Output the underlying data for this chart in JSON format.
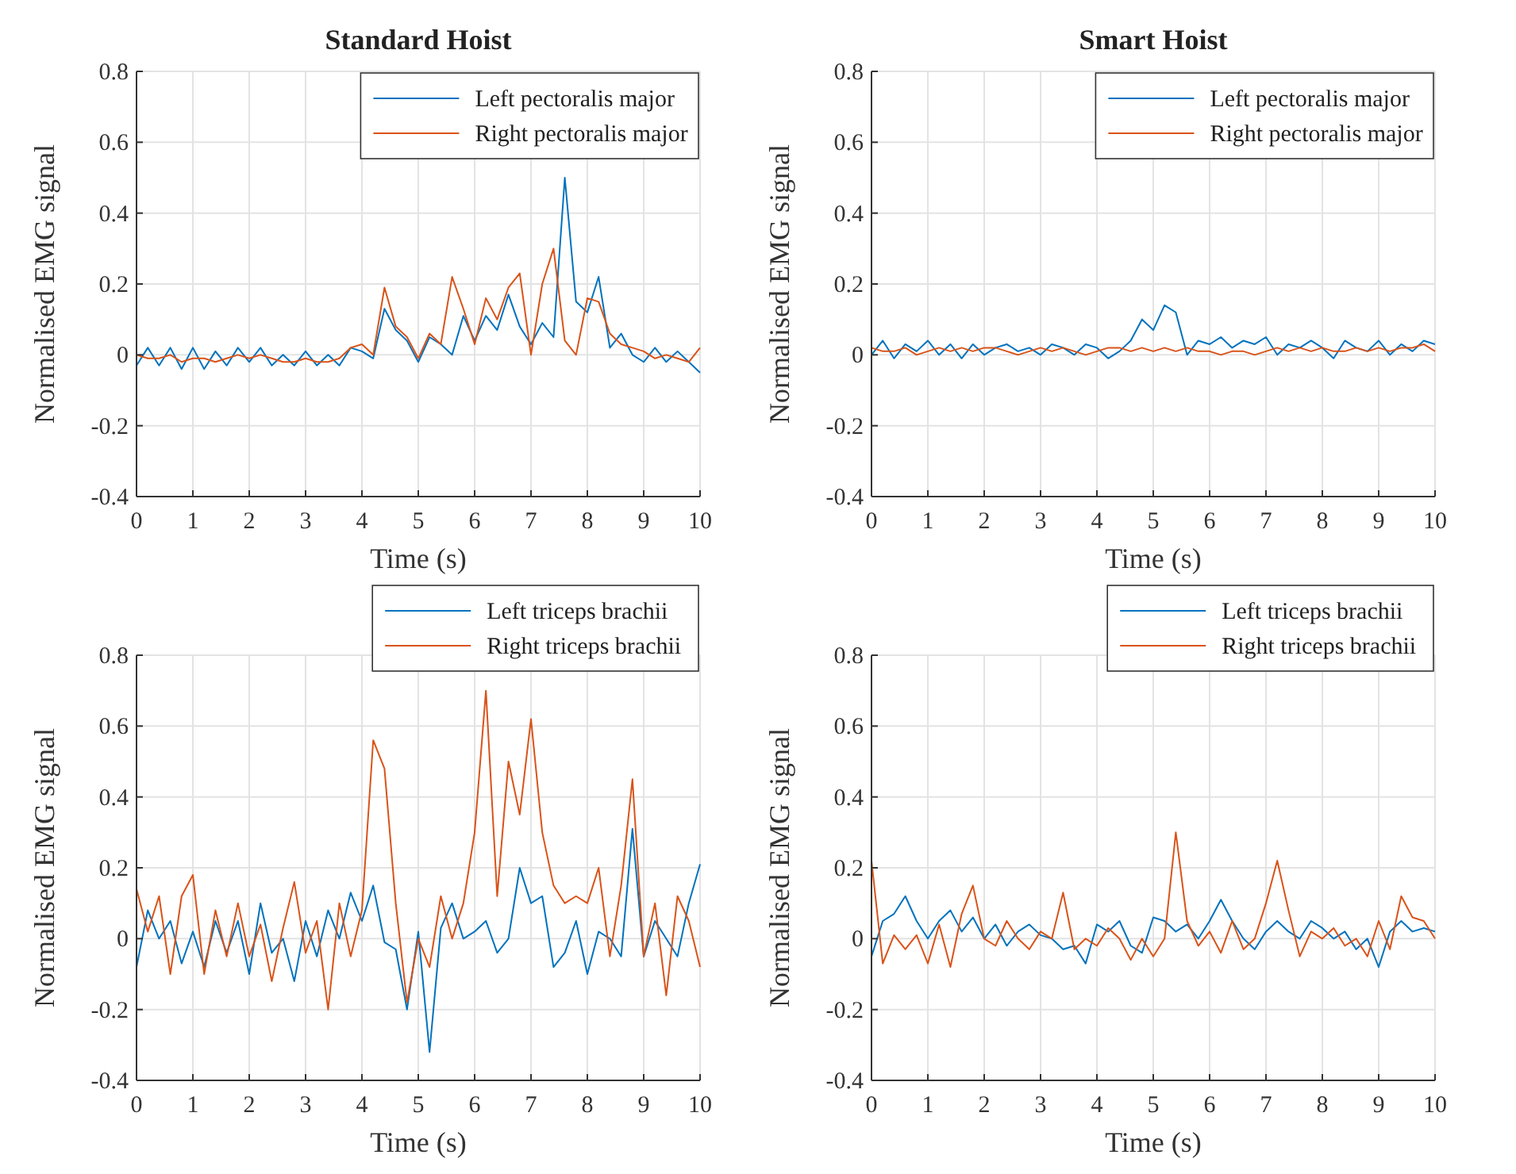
{
  "chart_data": [
    {
      "type": "line",
      "title": "Standard Hoist",
      "xlabel": "Time (s)",
      "ylabel": "Normalised EMG signal",
      "xlim": [
        0,
        10
      ],
      "ylim": [
        -0.4,
        0.8
      ],
      "xticks": [
        0,
        1,
        2,
        3,
        4,
        5,
        6,
        7,
        8,
        9,
        10
      ],
      "yticks": [
        -0.4,
        -0.2,
        0,
        0.2,
        0.4,
        0.6,
        0.8
      ],
      "grid": true,
      "legend": "top right",
      "line_style": "solid",
      "marker": "none",
      "x": [
        0,
        0.2,
        0.4,
        0.6,
        0.8,
        1,
        1.2,
        1.4,
        1.6,
        1.8,
        2,
        2.2,
        2.4,
        2.6,
        2.8,
        3,
        3.2,
        3.4,
        3.6,
        3.8,
        4,
        4.2,
        4.4,
        4.6,
        4.8,
        5,
        5.2,
        5.4,
        5.6,
        5.8,
        6,
        6.2,
        6.4,
        6.6,
        6.8,
        7,
        7.2,
        7.4,
        7.6,
        7.8,
        8,
        8.2,
        8.4,
        8.6,
        8.8,
        9,
        9.2,
        9.4,
        9.6,
        9.8,
        10
      ],
      "series": [
        {
          "name": "Left pectoralis major",
          "color": "#0072bd",
          "values": [
            -0.03,
            0.02,
            -0.03,
            0.02,
            -0.04,
            0.02,
            -0.04,
            0.01,
            -0.03,
            0.02,
            -0.02,
            0.02,
            -0.03,
            0,
            -0.03,
            0.01,
            -0.03,
            0,
            -0.03,
            0.02,
            0.01,
            -0.01,
            0.13,
            0.07,
            0.04,
            -0.02,
            0.05,
            0.03,
            0,
            0.11,
            0.04,
            0.11,
            0.07,
            0.17,
            0.08,
            0.03,
            0.09,
            0.05,
            0.5,
            0.15,
            0.12,
            0.22,
            0.02,
            0.06,
            0,
            -0.02,
            0.02,
            -0.02,
            0.01,
            -0.02,
            -0.05
          ]
        },
        {
          "name": "Right pectoralis major",
          "color": "#d95319",
          "values": [
            0,
            -0.01,
            -0.01,
            0,
            -0.02,
            -0.01,
            -0.01,
            -0.02,
            -0.01,
            0,
            -0.01,
            0,
            -0.01,
            -0.02,
            -0.02,
            -0.01,
            -0.02,
            -0.02,
            -0.01,
            0.02,
            0.03,
            0,
            0.19,
            0.08,
            0.05,
            -0.01,
            0.06,
            0.03,
            0.22,
            0.13,
            0.03,
            0.16,
            0.1,
            0.19,
            0.23,
            0,
            0.2,
            0.3,
            0.04,
            0,
            0.16,
            0.15,
            0.06,
            0.03,
            0.02,
            0.01,
            -0.01,
            0,
            -0.01,
            -0.02,
            0.02
          ]
        }
      ]
    },
    {
      "type": "line",
      "title": "Smart Hoist",
      "xlabel": "Time (s)",
      "ylabel": "Normalised EMG signal",
      "xlim": [
        0,
        10
      ],
      "ylim": [
        -0.4,
        0.8
      ],
      "xticks": [
        0,
        1,
        2,
        3,
        4,
        5,
        6,
        7,
        8,
        9,
        10
      ],
      "yticks": [
        -0.4,
        -0.2,
        0,
        0.2,
        0.4,
        0.6,
        0.8
      ],
      "grid": true,
      "legend": "top right",
      "line_style": "solid",
      "marker": "none",
      "x": [
        0,
        0.2,
        0.4,
        0.6,
        0.8,
        1,
        1.2,
        1.4,
        1.6,
        1.8,
        2,
        2.2,
        2.4,
        2.6,
        2.8,
        3,
        3.2,
        3.4,
        3.6,
        3.8,
        4,
        4.2,
        4.4,
        4.6,
        4.8,
        5,
        5.2,
        5.4,
        5.6,
        5.8,
        6,
        6.2,
        6.4,
        6.6,
        6.8,
        7,
        7.2,
        7.4,
        7.6,
        7.8,
        8,
        8.2,
        8.4,
        8.6,
        8.8,
        9,
        9.2,
        9.4,
        9.6,
        9.8,
        10
      ],
      "series": [
        {
          "name": "Left pectoralis major",
          "color": "#0072bd",
          "values": [
            0,
            0.04,
            -0.01,
            0.03,
            0.01,
            0.04,
            0,
            0.03,
            -0.01,
            0.03,
            0,
            0.02,
            0.03,
            0.01,
            0.02,
            0,
            0.03,
            0.02,
            0,
            0.03,
            0.02,
            -0.01,
            0.01,
            0.04,
            0.1,
            0.07,
            0.14,
            0.12,
            0,
            0.04,
            0.03,
            0.05,
            0.02,
            0.04,
            0.03,
            0.05,
            0,
            0.03,
            0.02,
            0.04,
            0.02,
            -0.01,
            0.04,
            0.02,
            0.01,
            0.04,
            0,
            0.03,
            0.01,
            0.04,
            0.03
          ]
        },
        {
          "name": "Right pectoralis major",
          "color": "#d95319",
          "values": [
            0.02,
            0.01,
            0.01,
            0.02,
            0,
            0.01,
            0.02,
            0.01,
            0.02,
            0.01,
            0.02,
            0.02,
            0.01,
            0,
            0.01,
            0.02,
            0.01,
            0.02,
            0.01,
            0,
            0.01,
            0.02,
            0.02,
            0.01,
            0.02,
            0.01,
            0.02,
            0.01,
            0.02,
            0.01,
            0.01,
            0,
            0.01,
            0.01,
            0,
            0.01,
            0.02,
            0.01,
            0.02,
            0.01,
            0.02,
            0.01,
            0.01,
            0.02,
            0.01,
            0.02,
            0.01,
            0.02,
            0.02,
            0.03,
            0.01
          ]
        }
      ]
    },
    {
      "type": "line",
      "xlabel": "Time (s)",
      "ylabel": "Normalised EMG signal",
      "xlim": [
        0,
        10
      ],
      "ylim": [
        -0.4,
        0.8
      ],
      "xticks": [
        0,
        1,
        2,
        3,
        4,
        5,
        6,
        7,
        8,
        9,
        10
      ],
      "yticks": [
        -0.4,
        -0.2,
        0,
        0.2,
        0.4,
        0.6,
        0.8
      ],
      "grid": true,
      "legend": "top right",
      "line_style": "solid",
      "marker": "none",
      "x": [
        0,
        0.2,
        0.4,
        0.6,
        0.8,
        1,
        1.2,
        1.4,
        1.6,
        1.8,
        2,
        2.2,
        2.4,
        2.6,
        2.8,
        3,
        3.2,
        3.4,
        3.6,
        3.8,
        4,
        4.2,
        4.4,
        4.6,
        4.8,
        5,
        5.2,
        5.4,
        5.6,
        5.8,
        6,
        6.2,
        6.4,
        6.6,
        6.8,
        7,
        7.2,
        7.4,
        7.6,
        7.8,
        8,
        8.2,
        8.4,
        8.6,
        8.8,
        9,
        9.2,
        9.4,
        9.6,
        9.8,
        10
      ],
      "series": [
        {
          "name": "Left triceps brachii",
          "color": "#0072bd",
          "values": [
            -0.08,
            0.08,
            0,
            0.05,
            -0.07,
            0.02,
            -0.08,
            0.05,
            -0.04,
            0.05,
            -0.1,
            0.1,
            -0.04,
            0,
            -0.12,
            0.05,
            -0.05,
            0.08,
            0,
            0.13,
            0.05,
            0.15,
            -0.01,
            -0.03,
            -0.2,
            0.02,
            -0.32,
            0.03,
            0.1,
            0,
            0.02,
            0.05,
            -0.04,
            0,
            0.2,
            0.1,
            0.12,
            -0.08,
            -0.04,
            0.05,
            -0.1,
            0.02,
            0,
            -0.05,
            0.31,
            -0.05,
            0.05,
            0,
            -0.05,
            0.1,
            0.21
          ]
        },
        {
          "name": "Right triceps brachii",
          "color": "#d95319",
          "values": [
            0.14,
            0.02,
            0.12,
            -0.1,
            0.12,
            0.18,
            -0.1,
            0.08,
            -0.05,
            0.1,
            -0.05,
            0.04,
            -0.12,
            0.03,
            0.16,
            -0.04,
            0.05,
            -0.2,
            0.1,
            -0.05,
            0.08,
            0.56,
            0.48,
            0.1,
            -0.18,
            0,
            -0.08,
            0.12,
            0,
            0.1,
            0.3,
            0.7,
            0.12,
            0.5,
            0.35,
            0.62,
            0.3,
            0.15,
            0.1,
            0.12,
            0.1,
            0.2,
            -0.05,
            0.15,
            0.45,
            -0.05,
            0.1,
            -0.16,
            0.12,
            0.05,
            -0.08
          ]
        }
      ]
    },
    {
      "type": "line",
      "xlabel": "Time (s)",
      "ylabel": "Normalised EMG signal",
      "xlim": [
        0,
        10
      ],
      "ylim": [
        -0.4,
        0.8
      ],
      "xticks": [
        0,
        1,
        2,
        3,
        4,
        5,
        6,
        7,
        8,
        9,
        10
      ],
      "yticks": [
        -0.4,
        -0.2,
        0,
        0.2,
        0.4,
        0.6,
        0.8
      ],
      "grid": true,
      "legend": "top right",
      "line_style": "solid",
      "marker": "none",
      "x": [
        0,
        0.2,
        0.4,
        0.6,
        0.8,
        1,
        1.2,
        1.4,
        1.6,
        1.8,
        2,
        2.2,
        2.4,
        2.6,
        2.8,
        3,
        3.2,
        3.4,
        3.6,
        3.8,
        4,
        4.2,
        4.4,
        4.6,
        4.8,
        5,
        5.2,
        5.4,
        5.6,
        5.8,
        6,
        6.2,
        6.4,
        6.6,
        6.8,
        7,
        7.2,
        7.4,
        7.6,
        7.8,
        8,
        8.2,
        8.4,
        8.6,
        8.8,
        9,
        9.2,
        9.4,
        9.6,
        9.8,
        10
      ],
      "series": [
        {
          "name": "Left triceps brachii",
          "color": "#0072bd",
          "values": [
            -0.05,
            0.05,
            0.07,
            0.12,
            0.05,
            0,
            0.05,
            0.08,
            0.02,
            0.06,
            0,
            0.04,
            -0.02,
            0.02,
            0.04,
            0.01,
            0,
            -0.03,
            -0.02,
            -0.07,
            0.04,
            0.02,
            0.05,
            -0.02,
            -0.04,
            0.06,
            0.05,
            0.02,
            0.04,
            0,
            0.05,
            0.11,
            0.05,
            0,
            -0.03,
            0.02,
            0.05,
            0.02,
            0,
            0.05,
            0.03,
            0,
            0.02,
            -0.03,
            0,
            -0.08,
            0.02,
            0.05,
            0.02,
            0.03,
            0.02
          ]
        },
        {
          "name": "Right triceps brachii",
          "color": "#d95319",
          "values": [
            0.22,
            -0.07,
            0.01,
            -0.03,
            0.01,
            -0.07,
            0.04,
            -0.08,
            0.07,
            0.15,
            0,
            -0.02,
            0.05,
            0,
            -0.03,
            0.02,
            0,
            0.13,
            -0.03,
            0,
            -0.02,
            0.03,
            0,
            -0.06,
            0,
            -0.05,
            0,
            0.3,
            0.05,
            -0.02,
            0.02,
            -0.04,
            0.05,
            -0.03,
            0,
            0.1,
            0.22,
            0.08,
            -0.05,
            0.02,
            0,
            0.03,
            -0.02,
            0,
            -0.05,
            0.05,
            -0.03,
            0.12,
            0.06,
            0.05,
            0
          ]
        }
      ]
    }
  ]
}
